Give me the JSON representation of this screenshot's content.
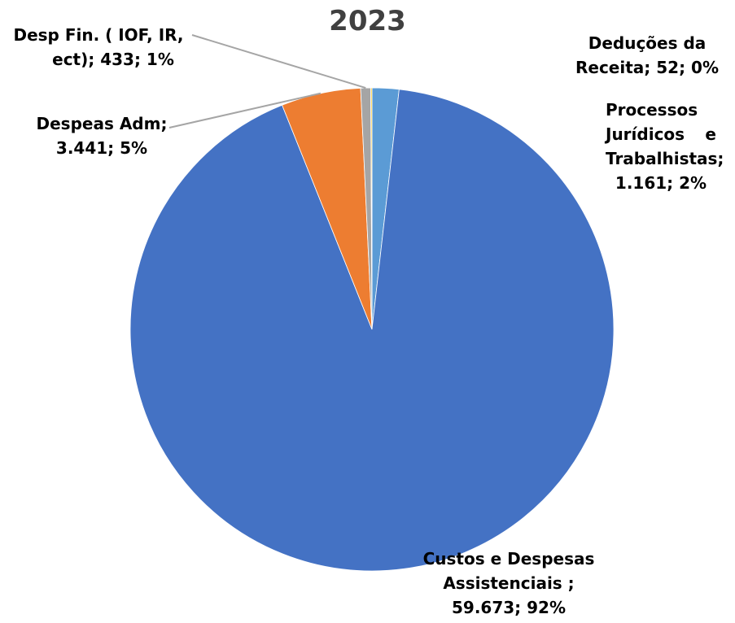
{
  "chart_data": {
    "type": "pie",
    "title": "2023",
    "slices": [
      {
        "name": "Processos Jurídicos e Trabalhistas",
        "value": 1161,
        "percent": "2%",
        "color": "#5B9BD5",
        "label_lines": [
          "Processos",
          "Jurídicos e",
          "Trabalhistas;",
          "1.161; 2%"
        ]
      },
      {
        "name": "Custos e Despesas Assistenciais",
        "value": 59673,
        "percent": "92%",
        "color": "#4472C4",
        "label_lines": [
          "Custos e Despesas",
          "Assistenciais ;",
          "59.673; 92%"
        ]
      },
      {
        "name": "Despeas Adm",
        "value": 3441,
        "percent": "5%",
        "color": "#ED7D31",
        "label_lines": [
          "Despeas Adm;",
          "3.441; 5%"
        ]
      },
      {
        "name": "Desp Fin. ( IOF, IR, ect)",
        "value": 433,
        "percent": "1%",
        "color": "#A5A5A5",
        "label_lines": [
          "Desp Fin. ( IOF, IR,",
          "ect); 433; 1%"
        ]
      },
      {
        "name": "Deduções da Receita",
        "value": 52,
        "percent": "0%",
        "color": "#FFC000",
        "label_lines": [
          "Deduções da",
          "Receita; 52; 0%"
        ]
      }
    ],
    "start_angle_deg": 0,
    "direction": "clockwise",
    "legend": "none",
    "data_labels": "outside"
  }
}
